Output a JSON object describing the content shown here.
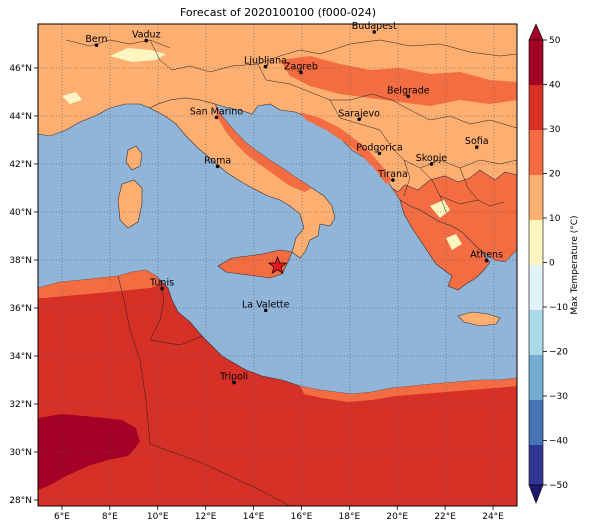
{
  "title": "Forecast of 2020100100 (f000-024)",
  "colorbar": {
    "label": "Max Temperature (°C)",
    "ticks": [
      "50",
      "40",
      "30",
      "20",
      "10",
      "0",
      "−10",
      "−20",
      "−30",
      "−40",
      "−50"
    ],
    "colors": {
      "sea": "#91b4d9",
      "c10_20": "#fdae71",
      "c20_30": "#f36c42",
      "c30_40": "#d73127",
      "c40_50": "#a50026",
      "c0_10": "#fef6c0"
    }
  },
  "axes": {
    "lon_labels": [
      "6°E",
      "8°E",
      "10°E",
      "12°E",
      "14°E",
      "16°E",
      "18°E",
      "20°E",
      "22°E",
      "24°E"
    ],
    "lat_labels": [
      "46°N",
      "44°N",
      "42°N",
      "40°N",
      "38°N",
      "36°N",
      "34°N",
      "32°N",
      "30°N",
      "28°N"
    ]
  },
  "cities": [
    {
      "name": "Bern",
      "lon": 7.44,
      "lat": 46.95
    },
    {
      "name": "Vaduz",
      "lon": 9.52,
      "lat": 47.14
    },
    {
      "name": "Budapest",
      "lon": 19.04,
      "lat": 47.5
    },
    {
      "name": "Ljubljana",
      "lon": 14.5,
      "lat": 46.05
    },
    {
      "name": "Zagreb",
      "lon": 15.98,
      "lat": 45.81
    },
    {
      "name": "Belgrade",
      "lon": 20.46,
      "lat": 44.82
    },
    {
      "name": "San Marino",
      "lon": 12.45,
      "lat": 43.94
    },
    {
      "name": "Sarajevo",
      "lon": 18.41,
      "lat": 43.86
    },
    {
      "name": "Sofia",
      "lon": 23.32,
      "lat": 42.7
    },
    {
      "name": "Podgorica",
      "lon": 19.26,
      "lat": 42.44
    },
    {
      "name": "Skopje",
      "lon": 21.43,
      "lat": 42.0
    },
    {
      "name": "Roma",
      "lon": 12.5,
      "lat": 41.9
    },
    {
      "name": "Tirana",
      "lon": 19.82,
      "lat": 41.33
    },
    {
      "name": "Athens",
      "lon": 23.73,
      "lat": 37.98
    },
    {
      "name": "Tunis",
      "lon": 10.18,
      "lat": 36.81
    },
    {
      "name": "La Valette",
      "lon": 14.51,
      "lat": 35.9
    },
    {
      "name": "Tripoli",
      "lon": 13.19,
      "lat": 32.89
    }
  ],
  "marker": {
    "name": "star",
    "lon": 15.0,
    "lat": 37.75
  }
}
